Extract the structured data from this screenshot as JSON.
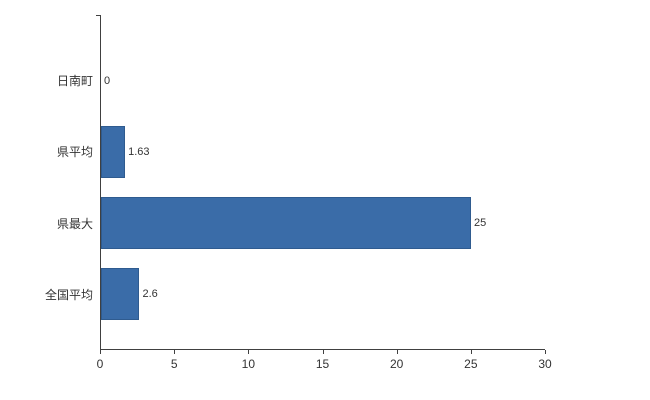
{
  "chart_data": {
    "type": "bar",
    "orientation": "horizontal",
    "title": "",
    "xlabel": "",
    "ylabel": "",
    "categories": [
      "日南町",
      "県平均",
      "県最大",
      "全国平均"
    ],
    "values": [
      0,
      1.63,
      25,
      2.6
    ],
    "value_labels": [
      "0",
      "1.63",
      "25",
      "2.6"
    ],
    "xlim": [
      0,
      30
    ],
    "xticks": [
      0,
      5,
      10,
      15,
      20,
      25,
      30
    ],
    "grid": false,
    "legend": "none",
    "bar_color": "#3A6CA8",
    "bar_border_color": "#2F5B8F",
    "axis_color": "#404040",
    "text_color": "#333333",
    "background_color": "#ffffff"
  }
}
